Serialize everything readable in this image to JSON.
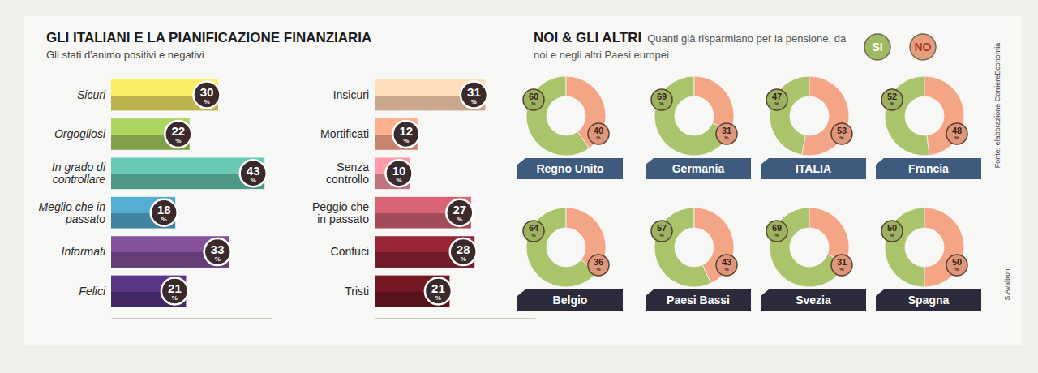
{
  "chart_data": [
    {
      "type": "bar",
      "orientation": "horizontal",
      "title": "GLI ITALIANI E LA PIANIFICAZIONE FINANZIARIA",
      "subtitle": "Gli stati d'animo positivi e negativi",
      "categories": [
        "Sicuri",
        "Orgogliosi",
        "In grado di controllare",
        "Meglio che in passato",
        "Informati",
        "Felici"
      ],
      "values": [
        30,
        22,
        43,
        18,
        33,
        21
      ],
      "value_labels": [
        "30%",
        "22%",
        "43%",
        "18%",
        "33%",
        "21%"
      ],
      "colors": [
        "#e6da5c",
        "#9dc457",
        "#5fb9a5",
        "#4d9fc2",
        "#7b4b8f",
        "#52317c"
      ],
      "xlim": [
        0,
        45
      ],
      "xticks": [],
      "tick_labels": "y",
      "data_labels": true
    },
    {
      "type": "bar",
      "orientation": "horizontal",
      "categories": [
        "Insicuri",
        "Mortificati",
        "Senza controllo",
        "Peggio che in passato",
        "Confuci",
        "Tristi"
      ],
      "values": [
        31,
        12,
        10,
        27,
        28,
        21
      ],
      "value_labels": [
        "31%",
        "12%",
        "10%",
        "27%",
        "28%",
        "21%"
      ],
      "colors": [
        "#f6cbab",
        "#f1a283",
        "#e98c9b",
        "#c65b6b",
        "#8c2232",
        "#6b1620"
      ],
      "xlim": [
        0,
        45
      ],
      "xticks": [],
      "tick_labels": "y",
      "data_labels": true
    },
    {
      "type": "donut",
      "title": "NOI & GLI ALTRI",
      "subtitle": "Quanti già risparmiano per la pensione, da noi e negli altri Paesi europei",
      "categories": [
        "Regno Unito",
        "Germania",
        "ITALIA",
        "Francia",
        "Belgio",
        "Paesi Bassi",
        "Svezia",
        "Spagna"
      ],
      "series": [
        {
          "name": "SI",
          "color": "#a9c46a",
          "values": [
            60,
            69,
            47,
            52,
            64,
            57,
            69,
            50
          ],
          "value_labels": [
            "60%",
            "69%",
            "47%",
            "52%",
            "64%",
            "57%",
            "69%",
            "50%"
          ]
        },
        {
          "name": "NO",
          "color": "#f3a586",
          "values": [
            40,
            31,
            53,
            48,
            36,
            43,
            31,
            50
          ],
          "value_labels": [
            "40%",
            "31%",
            "53%",
            "48%",
            "36%",
            "43%",
            "31%",
            "50%"
          ]
        }
      ],
      "data_labels": true,
      "legend": "top right",
      "annotations": [
        "Fonte: elaborazione CorriereEconomia",
        "S.Avaltroni"
      ]
    }
  ]
}
